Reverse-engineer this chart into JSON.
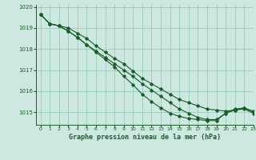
{
  "title": "Graphe pression niveau de la mer (hPa)",
  "bg_color": "#cce8e0",
  "grid_color": "#99ccbb",
  "line_color": "#1a5c28",
  "xlim": [
    -0.5,
    23
  ],
  "ylim": [
    1014.4,
    1020.1
  ],
  "yticks": [
    1015,
    1016,
    1017,
    1018,
    1019,
    1020
  ],
  "xticks": [
    0,
    1,
    2,
    3,
    4,
    5,
    6,
    7,
    8,
    9,
    10,
    11,
    12,
    13,
    14,
    15,
    16,
    17,
    18,
    19,
    20,
    21,
    22,
    23
  ],
  "series": [
    [
      1019.65,
      1019.2,
      1019.1,
      1018.85,
      1018.55,
      1018.2,
      1017.9,
      1017.6,
      1017.3,
      1017.0,
      1016.7,
      1016.35,
      1016.05,
      1015.75,
      1015.45,
      1015.15,
      1014.95,
      1014.75,
      1014.65,
      1014.65,
      1014.95,
      1015.15,
      1015.2,
      1015.05
    ],
    [
      1019.65,
      1019.2,
      1019.1,
      1018.85,
      1018.55,
      1018.2,
      1017.85,
      1017.5,
      1017.15,
      1016.7,
      1016.3,
      1015.85,
      1015.5,
      1015.2,
      1014.95,
      1014.8,
      1014.7,
      1014.65,
      1014.6,
      1014.6,
      1014.95,
      1015.1,
      1015.15,
      1014.95
    ],
    [
      1019.65,
      1019.2,
      1019.1,
      1019.0,
      1018.75,
      1018.5,
      1018.15,
      1017.85,
      1017.55,
      1017.3,
      1016.95,
      1016.6,
      1016.35,
      1016.1,
      1015.85,
      1015.6,
      1015.45,
      1015.3,
      1015.15,
      1015.1,
      1015.05,
      1015.1,
      1015.2,
      1015.0
    ]
  ]
}
